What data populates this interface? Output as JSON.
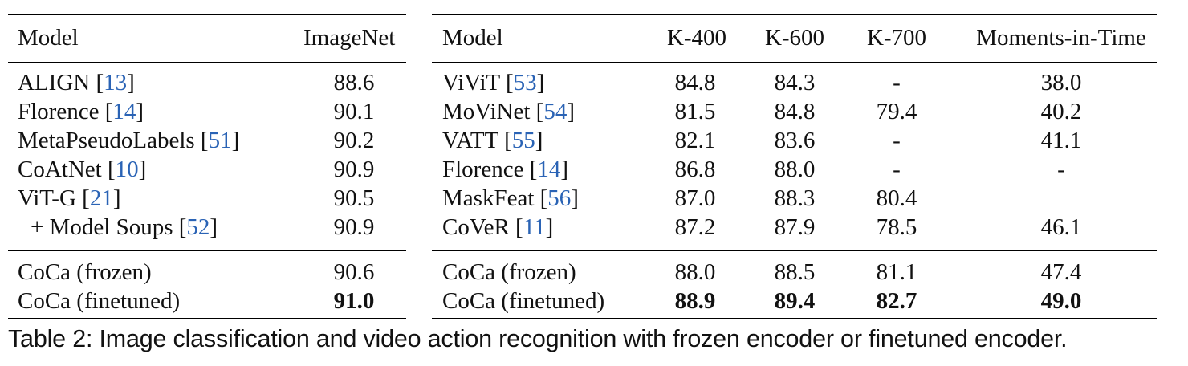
{
  "image_table": {
    "headers": [
      "Model",
      "ImageNet"
    ],
    "rows": [
      {
        "model": "ALIGN",
        "cite": "13",
        "imagenet": "88.6"
      },
      {
        "model": "Florence",
        "cite": "14",
        "imagenet": "90.1"
      },
      {
        "model": "MetaPseudoLabels",
        "cite": "51",
        "imagenet": "90.2"
      },
      {
        "model": "CoAtNet",
        "cite": "10",
        "imagenet": "90.9"
      },
      {
        "model": "ViT-G",
        "cite": "21",
        "imagenet": "90.5"
      },
      {
        "model": "+ Model Soups",
        "cite": "52",
        "imagenet": "90.9"
      }
    ],
    "coca_rows": [
      {
        "model": "CoCa (frozen)",
        "imagenet": "90.6"
      },
      {
        "model": "CoCa (finetuned)",
        "imagenet": "91.0"
      }
    ]
  },
  "video_table": {
    "headers": [
      "Model",
      "K-400",
      "K-600",
      "K-700",
      "Moments-in-Time"
    ],
    "rows": [
      {
        "model": "ViViT",
        "cite": "53",
        "k400": "84.8",
        "k600": "84.3",
        "k700": "-",
        "mit": "38.0"
      },
      {
        "model": "MoViNet",
        "cite": "54",
        "k400": "81.5",
        "k600": "84.8",
        "k700": "79.4",
        "mit": "40.2"
      },
      {
        "model": "VATT",
        "cite": "55",
        "k400": "82.1",
        "k600": "83.6",
        "k700": "-",
        "mit": "41.1"
      },
      {
        "model": "Florence",
        "cite": "14",
        "k400": "86.8",
        "k600": "88.0",
        "k700": "-",
        "mit": "-"
      },
      {
        "model": "MaskFeat",
        "cite": "56",
        "k400": "87.0",
        "k600": "88.3",
        "k700": "80.4",
        "mit": ""
      },
      {
        "model": "CoVeR",
        "cite": "11",
        "k400": "87.2",
        "k600": "87.9",
        "k700": "78.5",
        "mit": "46.1"
      }
    ],
    "coca_rows": [
      {
        "model": "CoCa (frozen)",
        "k400": "88.0",
        "k600": "88.5",
        "k700": "81.1",
        "mit": "47.4"
      },
      {
        "model": "CoCa (finetuned)",
        "k400": "88.9",
        "k600": "89.4",
        "k700": "82.7",
        "mit": "49.0"
      }
    ]
  },
  "caption": "Table 2:  Image classification and video action recognition with frozen encoder or finetuned encoder.",
  "colors": {
    "citation_link": "#2a63b5",
    "text": "#111111",
    "rules": "#000000"
  }
}
